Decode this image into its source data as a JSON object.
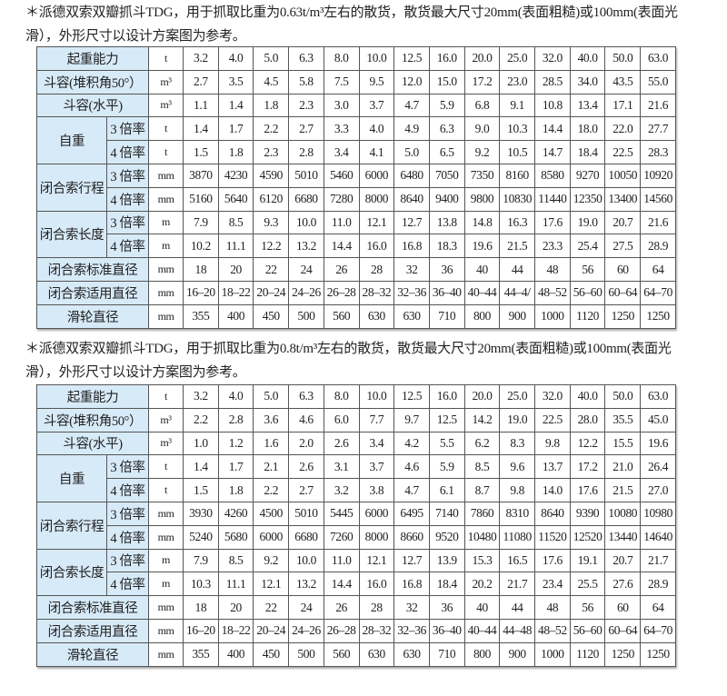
{
  "header_bg_color": "#d7eaf8",
  "tables": [
    {
      "caption": "＊派德双索双瓣抓斗TDG，用于抓取比重为0.63t/m³左右的散货，散货最大尺寸20mm(表面粗糙)或100mm(表面光滑），外形尺寸以设计方案图为参考。",
      "rows": [
        {
          "label": "起重能力",
          "unit": "t",
          "values": [
            "3.2",
            "4.0",
            "5.0",
            "6.3",
            "8.0",
            "10.0",
            "12.5",
            "16.0",
            "20.0",
            "25.0",
            "32.0",
            "40.0",
            "50.0",
            "63.0"
          ]
        },
        {
          "label": "斗容(堆积角50°）",
          "unit": "m³",
          "values": [
            "2.7",
            "3.5",
            "4.5",
            "5.8",
            "7.5",
            "9.5",
            "12.0",
            "15.0",
            "17.2",
            "23.0",
            "28.5",
            "34.0",
            "43.5",
            "55.0"
          ]
        },
        {
          "label": "斗容(水平)",
          "unit": "m³",
          "values": [
            "1.1",
            "1.4",
            "1.8",
            "2.3",
            "3.0",
            "3.7",
            "4.7",
            "5.9",
            "6.8",
            "9.1",
            "10.8",
            "13.4",
            "17.1",
            "21.6"
          ]
        },
        {
          "group": "自重",
          "sub": "3 倍率",
          "unit": "t",
          "values": [
            "1.4",
            "1.7",
            "2.2",
            "2.7",
            "3.3",
            "4.0",
            "4.9",
            "6.3",
            "9.0",
            "10.3",
            "14.4",
            "18.0",
            "22.0",
            "27.7"
          ]
        },
        {
          "group": "自重",
          "sub": "4 倍率",
          "unit": "t",
          "values": [
            "1.5",
            "1.8",
            "2.3",
            "2.8",
            "3.4",
            "4.1",
            "5.0",
            "6.5",
            "9.2",
            "10.5",
            "14.7",
            "18.4",
            "22.5",
            "28.3"
          ]
        },
        {
          "group": "闭合索行程",
          "sub": "3 倍率",
          "unit": "mm",
          "values": [
            "3870",
            "4230",
            "4590",
            "5010",
            "5460",
            "6000",
            "6480",
            "7050",
            "7350",
            "8160",
            "8580",
            "9270",
            "10050",
            "10920"
          ]
        },
        {
          "group": "闭合索行程",
          "sub": "4 倍率",
          "unit": "mm",
          "values": [
            "5160",
            "5640",
            "6120",
            "6680",
            "7280",
            "8000",
            "8640",
            "9400",
            "9800",
            "10830",
            "11440",
            "12350",
            "13400",
            "14560"
          ]
        },
        {
          "group": "闭合索长度",
          "sub": "3 倍率",
          "unit": "m",
          "values": [
            "7.9",
            "8.5",
            "9.3",
            "10.0",
            "11.0",
            "12.1",
            "12.7",
            "13.8",
            "14.8",
            "16.3",
            "17.6",
            "19.0",
            "20.7",
            "21.6"
          ]
        },
        {
          "group": "闭合索长度",
          "sub": "4 倍率",
          "unit": "m",
          "values": [
            "10.2",
            "11.1",
            "12.2",
            "13.2",
            "14.4",
            "16.0",
            "16.8",
            "18.3",
            "19.6",
            "21.5",
            "23.3",
            "25.4",
            "27.5",
            "28.9"
          ]
        },
        {
          "label": "闭合索标准直径",
          "unit": "mm",
          "values": [
            "18",
            "20",
            "22",
            "24",
            "26",
            "28",
            "32",
            "36",
            "40",
            "44",
            "48",
            "56",
            "60",
            "64"
          ]
        },
        {
          "label": "闭合索适用直径",
          "unit": "mm",
          "values": [
            "16–20",
            "18–22",
            "20–24",
            "24–26",
            "26–28",
            "28–32",
            "32–36",
            "36–40",
            "40–44",
            "44–4/",
            "48–52",
            "56–60",
            "60–64",
            "64–70"
          ]
        },
        {
          "label": "滑轮直径",
          "unit": "mm",
          "values": [
            "355",
            "400",
            "450",
            "500",
            "560",
            "630",
            "630",
            "710",
            "800",
            "900",
            "1000",
            "1120",
            "1250",
            "1250"
          ]
        }
      ]
    },
    {
      "caption": "＊派德双索双瓣抓斗TDG，用于抓取比重为0.8t/m³左右的散货，散货最大尺寸20mm(表面粗糙)或100mm(表面光滑），外形尺寸以设计方案图为参考。",
      "rows": [
        {
          "label": "起重能力",
          "unit": "t",
          "values": [
            "3.2",
            "4.0",
            "5.0",
            "6.3",
            "8.0",
            "10.0",
            "12.5",
            "16.0",
            "20.0",
            "25.0",
            "32.0",
            "40.0",
            "50.0",
            "63.0"
          ]
        },
        {
          "label": "斗容(堆积角50°）",
          "unit": "m³",
          "values": [
            "2.2",
            "2.8",
            "3.6",
            "4.6",
            "6.0",
            "7.7",
            "9.7",
            "12.5",
            "14.2",
            "19.0",
            "22.5",
            "28.0",
            "35.5",
            "45.0"
          ]
        },
        {
          "label": "斗容(水平)",
          "unit": "m³",
          "values": [
            "1.0",
            "1.2",
            "1.6",
            "2.0",
            "2.6",
            "3.4",
            "4.2",
            "5.5",
            "6.2",
            "8.3",
            "9.8",
            "12.2",
            "15.5",
            "19.6"
          ]
        },
        {
          "group": "自重",
          "sub": "3 倍率",
          "unit": "t",
          "values": [
            "1.4",
            "1.7",
            "2.1",
            "2.6",
            "3.1",
            "3.7",
            "4.6",
            "5.9",
            "8.5",
            "9.6",
            "13.7",
            "17.2",
            "21.0",
            "26.4"
          ]
        },
        {
          "group": "自重",
          "sub": "4 倍率",
          "unit": "t",
          "values": [
            "1.5",
            "1.8",
            "2.2",
            "2.7",
            "3.2",
            "3.8",
            "4.7",
            "6.1",
            "8.7",
            "9.8",
            "14.0",
            "17.6",
            "21.5",
            "27.0"
          ]
        },
        {
          "group": "闭合索行程",
          "sub": "3 倍率",
          "unit": "mm",
          "values": [
            "3930",
            "4260",
            "4500",
            "5010",
            "5445",
            "6000",
            "6495",
            "7140",
            "7860",
            "8310",
            "8640",
            "9390",
            "10080",
            "10980"
          ]
        },
        {
          "group": "闭合索行程",
          "sub": "4 倍率",
          "unit": "mm",
          "values": [
            "5240",
            "5680",
            "6000",
            "6680",
            "7260",
            "8000",
            "8660",
            "9520",
            "10480",
            "11080",
            "11520",
            "12520",
            "13440",
            "14640"
          ]
        },
        {
          "group": "闭合索长度",
          "sub": "3 倍率",
          "unit": "m",
          "values": [
            "7.9",
            "8.5",
            "9.2",
            "10.0",
            "11.0",
            "12.1",
            "12.7",
            "13.9",
            "15.3",
            "16.5",
            "17.6",
            "19.1",
            "20.7",
            "21.7"
          ]
        },
        {
          "group": "闭合索长度",
          "sub": "4 倍率",
          "unit": "m",
          "values": [
            "10.3",
            "11.1",
            "12.1",
            "13.2",
            "14.4",
            "16.0",
            "16.8",
            "18.4",
            "20.2",
            "21.7",
            "23.4",
            "25.5",
            "27.6",
            "28.9"
          ]
        },
        {
          "label": "闭合索标准直径",
          "unit": "mm",
          "values": [
            "18",
            "20",
            "22",
            "24",
            "26",
            "28",
            "32",
            "36",
            "40",
            "44",
            "48",
            "56",
            "60",
            "64"
          ]
        },
        {
          "label": "闭合索适用直径",
          "unit": "mm",
          "values": [
            "16–20",
            "18–22",
            "20–24",
            "24–26",
            "26–28",
            "28–32",
            "32–36",
            "36–40",
            "40–44",
            "44–48",
            "48–52",
            "56–60",
            "60–64",
            "64–70"
          ]
        },
        {
          "label": "滑轮直径",
          "unit": "mm",
          "values": [
            "355",
            "400",
            "450",
            "500",
            "560",
            "630",
            "630",
            "710",
            "800",
            "900",
            "1000",
            "1120",
            "1250",
            "1250"
          ]
        }
      ]
    }
  ]
}
